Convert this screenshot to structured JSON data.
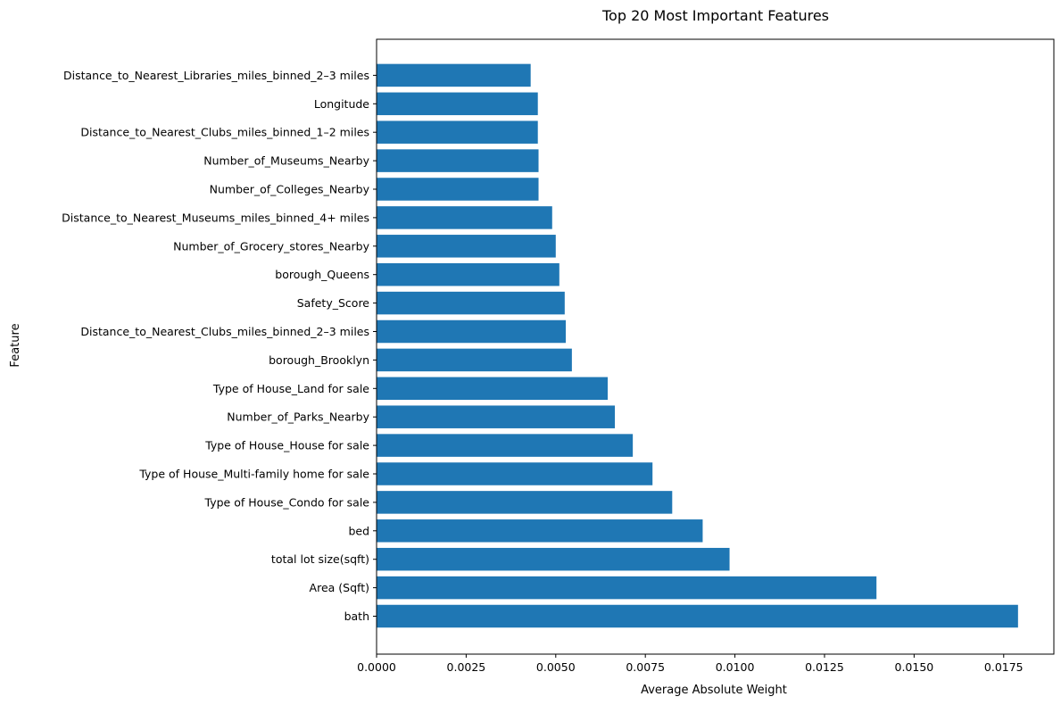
{
  "chart_data": {
    "type": "bar",
    "orientation": "horizontal",
    "title": "Top 20 Most Important Features",
    "xlabel": "Average Absolute Weight",
    "ylabel": "Feature",
    "categories": [
      "bath",
      "Area (Sqft)",
      "total lot size(sqft)",
      "bed",
      "Type of House_Condo for sale",
      "Type of House_Multi-family home for sale",
      "Type of House_House for sale",
      "Number_of_Parks_Nearby",
      "Type of House_Land for sale",
      "borough_Brooklyn",
      "Distance_to_Nearest_Clubs_miles_binned_2–3 miles",
      "Safety_Score",
      "borough_Queens",
      "Number_of_Grocery_stores_Nearby",
      "Distance_to_Nearest_Museums_miles_binned_4+ miles",
      "Number_of_Colleges_Nearby",
      "Number_of_Museums_Nearby",
      "Distance_to_Nearest_Clubs_miles_binned_1–2 miles",
      "Longitude",
      "Distance_to_Nearest_Libraries_miles_binned_2–3 miles"
    ],
    "values": [
      0.0179,
      0.01395,
      0.00985,
      0.0091,
      0.00825,
      0.0077,
      0.00715,
      0.00665,
      0.00645,
      0.00545,
      0.00528,
      0.00525,
      0.0051,
      0.005,
      0.0049,
      0.00452,
      0.00452,
      0.0045,
      0.0045,
      0.0043
    ],
    "xlim": [
      0,
      0.0189
    ],
    "xticks": [
      "0.0000",
      "0.0025",
      "0.0050",
      "0.0075",
      "0.0100",
      "0.0125",
      "0.0150",
      "0.0175"
    ],
    "grid": false,
    "legend": "none",
    "bar_color": "#1f77b4"
  }
}
